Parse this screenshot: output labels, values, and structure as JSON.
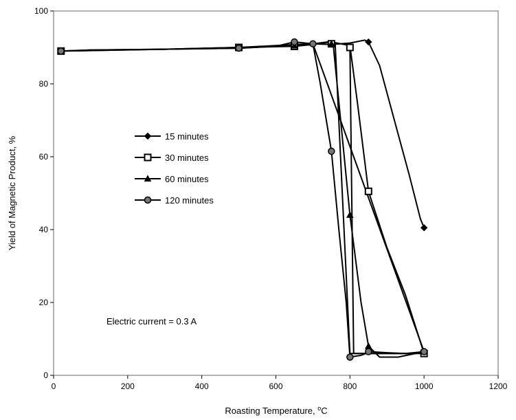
{
  "chart_data": {
    "type": "line",
    "title": "",
    "xlabel": "Roasting Temperature, ",
    "xlabel_unit": "°C",
    "ylabel": "Yield of Magnetic Product, %",
    "xlim": [
      0,
      1200
    ],
    "ylim": [
      0,
      100
    ],
    "xticks": [
      0,
      200,
      400,
      600,
      800,
      1000,
      1200
    ],
    "yticks": [
      0,
      20,
      40,
      60,
      80,
      100
    ],
    "grid": false,
    "legend_position": "center-left",
    "annotation": "Electric current = 0.3 A",
    "series": [
      {
        "name": "15 minutes",
        "marker": "diamond",
        "curve": [
          [
            20,
            89
          ],
          [
            100,
            89.3
          ],
          [
            300,
            89.5
          ],
          [
            500,
            89.8
          ],
          [
            600,
            90.3
          ],
          [
            650,
            90.8
          ],
          [
            700,
            91
          ],
          [
            750,
            90.8
          ],
          [
            800,
            91.2
          ],
          [
            840,
            92
          ],
          [
            850,
            91.5
          ],
          [
            880,
            85
          ],
          [
            920,
            70
          ],
          [
            960,
            55
          ],
          [
            990,
            43
          ],
          [
            1000,
            40.5
          ]
        ],
        "points": [
          [
            20,
            89
          ],
          [
            500,
            90
          ],
          [
            650,
            90.5
          ],
          [
            850,
            91.5
          ],
          [
            1000,
            40.5
          ]
        ]
      },
      {
        "name": "30 minutes",
        "marker": "square",
        "curve": [
          [
            20,
            89
          ],
          [
            100,
            89.3
          ],
          [
            300,
            89.5
          ],
          [
            500,
            90
          ],
          [
            650,
            90.3
          ],
          [
            700,
            90.8
          ],
          [
            750,
            91.5
          ],
          [
            800,
            90.5
          ],
          [
            820,
            75
          ],
          [
            850,
            50.5
          ],
          [
            900,
            35
          ],
          [
            950,
            22
          ],
          [
            1000,
            6
          ],
          [
            900,
            6
          ],
          [
            850,
            6
          ],
          [
            810,
            6
          ],
          [
            800,
            90
          ],
          [
            800,
            90.3
          ]
        ],
        "points": [
          [
            20,
            89
          ],
          [
            500,
            90
          ],
          [
            650,
            90.3
          ],
          [
            750,
            91
          ],
          [
            800,
            90
          ],
          [
            850,
            50.5
          ],
          [
            1000,
            6
          ]
        ]
      },
      {
        "name": "60 minutes",
        "marker": "triangle",
        "curve": [
          [
            20,
            89
          ],
          [
            300,
            89.5
          ],
          [
            500,
            90
          ],
          [
            600,
            90.5
          ],
          [
            700,
            91
          ],
          [
            740,
            91.5
          ],
          [
            755,
            90.5
          ],
          [
            770,
            75
          ],
          [
            800,
            44
          ],
          [
            830,
            20
          ],
          [
            850,
            8
          ],
          [
            880,
            5
          ],
          [
            930,
            5
          ],
          [
            1000,
            6.5
          ],
          [
            960,
            6
          ],
          [
            900,
            6
          ],
          [
            850,
            6
          ],
          [
            800,
            6
          ],
          [
            760,
            91
          ]
        ],
        "points": [
          [
            20,
            89
          ],
          [
            500,
            90
          ],
          [
            650,
            90.5
          ],
          [
            750,
            91
          ],
          [
            800,
            44
          ],
          [
            850,
            8
          ],
          [
            1000,
            6.5
          ]
        ]
      },
      {
        "name": "120 minutes",
        "marker": "circle",
        "curve": [
          [
            20,
            89
          ],
          [
            300,
            89.5
          ],
          [
            500,
            89.8
          ],
          [
            600,
            90.3
          ],
          [
            650,
            91.5
          ],
          [
            700,
            91
          ],
          [
            720,
            80
          ],
          [
            750,
            61.5
          ],
          [
            770,
            40
          ],
          [
            790,
            20
          ],
          [
            800,
            5
          ],
          [
            830,
            5.5
          ],
          [
            855,
            6.5
          ],
          [
            900,
            6.2
          ],
          [
            950,
            6
          ],
          [
            1000,
            6.5
          ],
          [
            700,
            91
          ]
        ],
        "points": [
          [
            20,
            89
          ],
          [
            500,
            89.8
          ],
          [
            650,
            91.5
          ],
          [
            700,
            91
          ],
          [
            750,
            61.5
          ],
          [
            800,
            5
          ],
          [
            850,
            6.5
          ],
          [
            1000,
            6.5
          ]
        ]
      }
    ]
  }
}
